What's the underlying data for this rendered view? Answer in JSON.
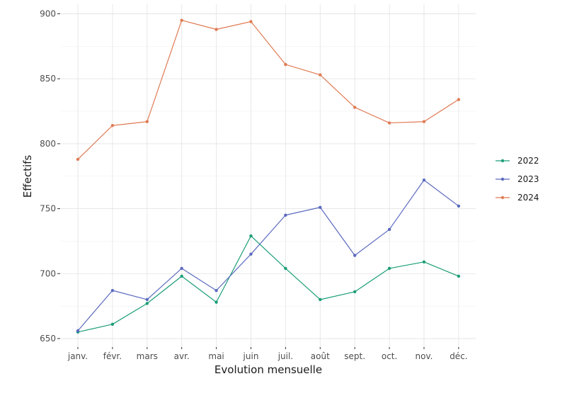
{
  "chart_data": {
    "type": "line",
    "xlabel": "Evolution mensuelle",
    "ylabel": "Effectifs",
    "categories": [
      "janv.",
      "févr.",
      "mars",
      "avr.",
      "mai",
      "juin",
      "juil.",
      "août",
      "sept.",
      "oct.",
      "nov.",
      "déc."
    ],
    "ylim": [
      650,
      900
    ],
    "yticks": [
      650,
      700,
      750,
      800,
      850,
      900
    ],
    "grid": true,
    "legend_position": "right",
    "series": [
      {
        "name": "2022",
        "color": "#1b9e77",
        "values": [
          655,
          661,
          677,
          698,
          678,
          729,
          704,
          680,
          686,
          704,
          709,
          698
        ]
      },
      {
        "name": "2023",
        "color": "#5b6abf",
        "values": [
          656,
          687,
          680,
          704,
          687,
          715,
          745,
          751,
          714,
          734,
          772,
          752
        ]
      },
      {
        "name": "2024",
        "color": "#e07b54",
        "values": [
          788,
          814,
          817,
          895,
          888,
          894,
          861,
          853,
          828,
          816,
          817,
          834
        ]
      }
    ]
  }
}
